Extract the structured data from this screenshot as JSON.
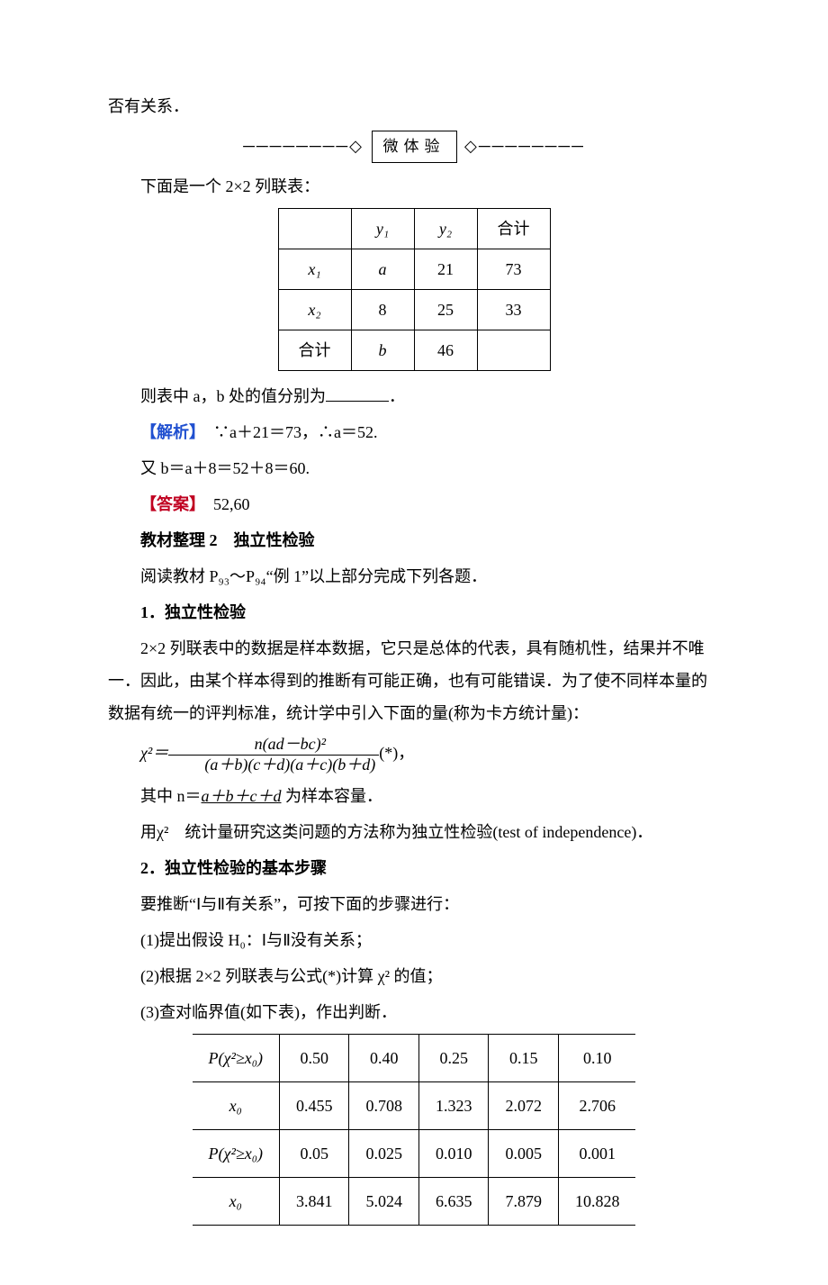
{
  "top_fragment": "否有关系．",
  "divider": {
    "left_deco": "────────◇",
    "label": "微体验",
    "right_deco": "◇────────"
  },
  "intro_line": "下面是一个 2×2 列联表：",
  "table1": {
    "type": "table",
    "border_color": "#000000",
    "cell_padding": "4px 22px",
    "font_size": 18,
    "header": [
      "",
      "y₁",
      "y₂",
      "合计"
    ],
    "rows": [
      [
        "x₁",
        "a",
        "21",
        "73"
      ],
      [
        "x₂",
        "8",
        "25",
        "33"
      ],
      [
        "合计",
        "b",
        "46",
        ""
      ]
    ]
  },
  "q_line": "则表中 a，b 处的值分别为",
  "q_suffix": "．",
  "analysis_label": "【解析】",
  "analysis_l1": "　∵a＋21＝73，∴a＝52.",
  "analysis_l2": "又 b＝a＋8＝52＋8＝60.",
  "answer_label": "【答案】",
  "answer_val": "　52,60",
  "section2_title": "教材整理 2　独立性检验",
  "section2_reading": "阅读教材 P₉₃～P₉₄“例 1”以上部分完成下列各题．",
  "s2_h1": "1．独立性检验",
  "s2_p1": "2×2 列联表中的数据是样本数据，它只是总体的代表，具有随机性，结果并不唯一．因此，由某个样本得到的推断有可能正确，也有可能错误．为了使不同样本量的数据有统一的评判标准，统计学中引入下面的量(称为卡方统计量)：",
  "formula": {
    "lhs": "χ²＝",
    "num": "n(ad－bc)²",
    "den": "(a＋b)(c＋d)(a＋c)(b＋d)",
    "suffix": "(*)，",
    "font_family": "Times New Roman"
  },
  "s2_p2_pre": "其中 n＝",
  "s2_p2_u": "a＋b＋c＋d",
  "s2_p2_post": " 为样本容量．",
  "s2_p3": "用χ²　统计量研究这类问题的方法称为独立性检验(test of independence)．",
  "s2_h2": "2．独立性检验的基本步骤",
  "s2_p4": "要推断“Ⅰ与Ⅱ有关系”，可按下面的步骤进行：",
  "s2_step1": "(1)提出假设 H₀：Ⅰ与Ⅱ没有关系；",
  "s2_step2": "(2)根据 2×2 列联表与公式(*)计算 χ² 的值；",
  "s2_step3": "(3)查对临界值(如下表)，作出判断．",
  "crit_table": {
    "type": "table",
    "border_color": "#000000",
    "font_size": 18,
    "row1h": "P(χ²≥x₀)",
    "row1": [
      "0.50",
      "0.40",
      "0.25",
      "0.15",
      "0.10"
    ],
    "row2h": "x₀",
    "row2": [
      "0.455",
      "0.708",
      "1.323",
      "2.072",
      "2.706"
    ],
    "row3h": "P(χ²≥x₀)",
    "row3": [
      "0.05",
      "0.025",
      "0.010",
      "0.005",
      "0.001"
    ],
    "row4h": "x₀",
    "row4": [
      "3.841",
      "5.024",
      "6.635",
      "7.879",
      "10.828"
    ]
  },
  "colors": {
    "text": "#000000",
    "background": "#ffffff",
    "blue_tag": "#2050d0",
    "red_tag": "#c00020"
  }
}
